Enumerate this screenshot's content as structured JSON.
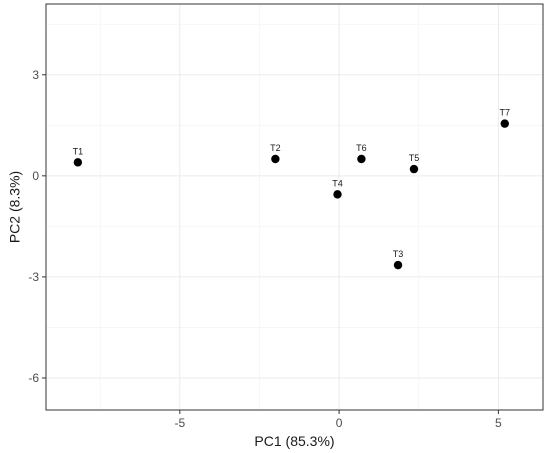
{
  "chart_data": {
    "type": "scatter",
    "xlabel": "PC1 (85.3%)",
    "ylabel": "PC2 (8.3%)",
    "xlim": [
      -9.2,
      6.4
    ],
    "ylim": [
      -6.95,
      5.1
    ],
    "x_ticks": [
      -5,
      0,
      5
    ],
    "y_ticks": [
      3,
      0,
      -3,
      -6
    ],
    "x_minor_gridlines": [
      -7.5,
      -2.5,
      2.5
    ],
    "y_minor_gridlines": [
      4.5,
      1.5,
      -1.5,
      -4.5
    ],
    "grid": true,
    "legend": "none",
    "point_color": "#000000",
    "points": [
      {
        "label": "T1",
        "x": -8.2,
        "y": 0.4
      },
      {
        "label": "T2",
        "x": -2.0,
        "y": 0.5
      },
      {
        "label": "T3",
        "x": 1.85,
        "y": -2.65
      },
      {
        "label": "T4",
        "x": -0.05,
        "y": -0.55
      },
      {
        "label": "T5",
        "x": 2.35,
        "y": 0.2
      },
      {
        "label": "T6",
        "x": 0.7,
        "y": 0.5
      },
      {
        "label": "T7",
        "x": 5.2,
        "y": 1.55
      }
    ]
  }
}
